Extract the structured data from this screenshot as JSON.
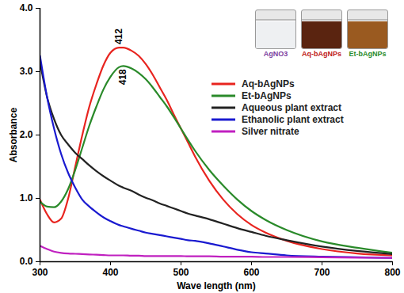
{
  "chart_data": {
    "type": "line",
    "x_label": "Wave length (nm)",
    "y_label": "Absorbance",
    "x": [
      300,
      310,
      320,
      330,
      340,
      350,
      360,
      370,
      380,
      390,
      400,
      412,
      418,
      430,
      440,
      450,
      460,
      470,
      480,
      490,
      500,
      510,
      520,
      540,
      560,
      580,
      600,
      620,
      650,
      700,
      750,
      800
    ],
    "series": [
      {
        "name": "Aq-bAgNPs",
        "color": "#e8241f",
        "values": [
          0.98,
          0.75,
          0.62,
          0.68,
          1.0,
          1.5,
          2.0,
          2.45,
          2.8,
          3.1,
          3.3,
          3.38,
          3.38,
          3.33,
          3.25,
          3.12,
          2.95,
          2.75,
          2.55,
          2.32,
          2.1,
          1.88,
          1.66,
          1.28,
          0.98,
          0.75,
          0.58,
          0.46,
          0.33,
          0.2,
          0.13,
          0.1
        ]
      },
      {
        "name": "Et-bAgNPs",
        "color": "#2a8a2a",
        "values": [
          0.95,
          0.87,
          0.86,
          0.95,
          1.15,
          1.45,
          1.8,
          2.15,
          2.45,
          2.72,
          2.92,
          3.07,
          3.09,
          3.05,
          2.98,
          2.88,
          2.75,
          2.6,
          2.45,
          2.28,
          2.1,
          1.92,
          1.75,
          1.45,
          1.2,
          0.98,
          0.8,
          0.66,
          0.5,
          0.32,
          0.22,
          0.14
        ]
      },
      {
        "name": "Aqueous plant extract",
        "color": "#222222",
        "values": [
          3.15,
          2.6,
          2.25,
          2.0,
          1.85,
          1.72,
          1.62,
          1.52,
          1.43,
          1.35,
          1.28,
          1.2,
          1.17,
          1.12,
          1.06,
          1.01,
          0.97,
          0.92,
          0.88,
          0.84,
          0.8,
          0.76,
          0.73,
          0.67,
          0.6,
          0.53,
          0.47,
          0.41,
          0.34,
          0.24,
          0.17,
          0.12
        ]
      },
      {
        "name": "Ethanolic plant extract",
        "color": "#1a1ad0",
        "values": [
          3.25,
          2.6,
          2.1,
          1.7,
          1.4,
          1.17,
          0.98,
          0.87,
          0.78,
          0.7,
          0.64,
          0.58,
          0.56,
          0.52,
          0.49,
          0.46,
          0.44,
          0.42,
          0.4,
          0.38,
          0.36,
          0.34,
          0.33,
          0.29,
          0.24,
          0.19,
          0.15,
          0.13,
          0.1,
          0.08,
          0.07,
          0.06
        ]
      },
      {
        "name": "Silver nitrate",
        "color": "#c020c0",
        "values": [
          0.25,
          0.2,
          0.16,
          0.14,
          0.13,
          0.125,
          0.12,
          0.115,
          0.11,
          0.105,
          0.1,
          0.1,
          0.1,
          0.095,
          0.095,
          0.09,
          0.09,
          0.09,
          0.09,
          0.09,
          0.09,
          0.085,
          0.085,
          0.085,
          0.08,
          0.08,
          0.08,
          0.075,
          0.075,
          0.07,
          0.065,
          0.06
        ]
      }
    ],
    "xlim": [
      300,
      800
    ],
    "xticks": [
      300,
      400,
      500,
      600,
      700,
      800
    ],
    "ylim": [
      0,
      4
    ],
    "yticks": [
      0,
      1,
      2,
      3,
      4
    ],
    "legend": "right",
    "annotations": [
      {
        "text": "412",
        "x": 412,
        "series": "Aq-bAgNPs"
      },
      {
        "text": "418",
        "x": 418,
        "series": "Et-bAgNPs"
      }
    ],
    "inset_labels": [
      {
        "text": "AgNO3",
        "color": "#7b3fa0",
        "fill": "#eef0f2"
      },
      {
        "text": "Aq-bAgNPs",
        "color": "#c0201a",
        "fill": "#5a2410"
      },
      {
        "text": "Et-bAgNPs",
        "color": "#2a8a2a",
        "fill": "#9a5a20"
      }
    ]
  }
}
